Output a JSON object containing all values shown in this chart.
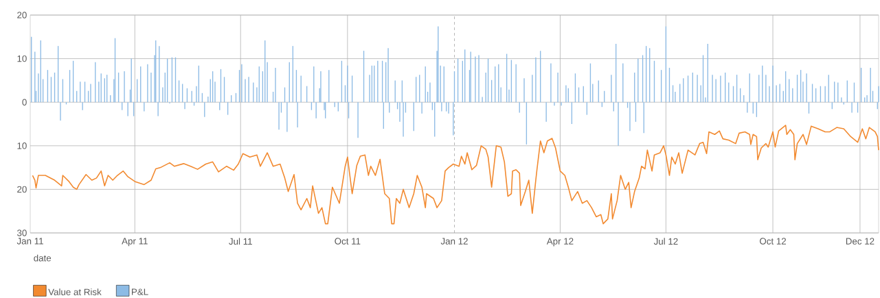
{
  "chart_data": {
    "type": "line",
    "xlabel": "date",
    "xlim": [
      "2011-01-01",
      "2012-12-31"
    ],
    "xticks": [
      {
        "value": "2011-01-01",
        "label": "Jan 11"
      },
      {
        "value": "2011-04-01",
        "label": "Apr 11"
      },
      {
        "value": "2011-07-01",
        "label": "Jul 11"
      },
      {
        "value": "2011-10-01",
        "label": "Oct 11"
      },
      {
        "value": "2012-01-01",
        "label": "Jan 12"
      },
      {
        "value": "2012-04-01",
        "label": "Apr 12"
      },
      {
        "value": "2012-07-01",
        "label": "Jul 12"
      },
      {
        "value": "2012-10-01",
        "label": "Oct 12"
      },
      {
        "value": "2012-12-15",
        "label": "Dec 12"
      }
    ],
    "ylim": [
      -30,
      20
    ],
    "yticks": [
      {
        "value": -30,
        "label": "30"
      },
      {
        "value": -20,
        "label": "20"
      },
      {
        "value": -10,
        "label": "10"
      },
      0,
      10,
      20
    ],
    "grid": true,
    "legend": "bottom left",
    "ref_lines": [
      {
        "axis": "x",
        "value": "2012-01-01",
        "line_style": "dashed",
        "color": "#a6a6a6"
      }
    ],
    "series": [
      {
        "name": "Value at Risk",
        "color": "#f28a30",
        "x": [
          "2011-01-03",
          "2011-01-05",
          "2011-01-06",
          "2011-01-08",
          "2011-01-14",
          "2011-01-22",
          "2011-01-28",
          "2011-01-29",
          "2011-02-03",
          "2011-02-07",
          "2011-02-10",
          "2011-02-12",
          "2011-02-18",
          "2011-02-23",
          "2011-02-27",
          "2011-03-03",
          "2011-03-06",
          "2011-03-09",
          "2011-03-13",
          "2011-03-17",
          "2011-03-22",
          "2011-03-26",
          "2011-04-01",
          "2011-04-09",
          "2011-04-15",
          "2011-04-19",
          "2011-04-23",
          "2011-05-01",
          "2011-05-05",
          "2011-05-13",
          "2011-05-19",
          "2011-05-25",
          "2011-06-01",
          "2011-06-07",
          "2011-06-12",
          "2011-06-19",
          "2011-06-25",
          "2011-06-29",
          "2011-07-03",
          "2011-07-09",
          "2011-07-15",
          "2011-07-18",
          "2011-07-24",
          "2011-07-29",
          "2011-08-04",
          "2011-08-08",
          "2011-08-11",
          "2011-08-16",
          "2011-08-19",
          "2011-08-22",
          "2011-08-27",
          "2011-08-30",
          "2011-09-01",
          "2011-09-06",
          "2011-09-09",
          "2011-09-12",
          "2011-09-14",
          "2011-09-18",
          "2011-09-24",
          "2011-09-29",
          "2011-10-01",
          "2011-10-05",
          "2011-10-09",
          "2011-10-12",
          "2011-10-16",
          "2011-10-19",
          "2011-10-21",
          "2011-10-25",
          "2011-10-29",
          "2011-11-02",
          "2011-11-06",
          "2011-11-08",
          "2011-11-10",
          "2011-11-12",
          "2011-11-15",
          "2011-11-18",
          "2011-11-23",
          "2011-11-27",
          "2011-11-30",
          "2011-12-04",
          "2011-12-07",
          "2011-12-08",
          "2011-12-14",
          "2011-12-17",
          "2011-12-21",
          "2011-12-24",
          "2011-12-27",
          "2011-12-31",
          "2012-01-05",
          "2012-01-07",
          "2012-01-10",
          "2012-01-12",
          "2012-01-16",
          "2012-01-20",
          "2012-01-24",
          "2012-01-28",
          "2012-01-30",
          "2012-02-02",
          "2012-02-06",
          "2012-02-10",
          "2012-02-13",
          "2012-02-16",
          "2012-02-19",
          "2012-02-20",
          "2012-02-23",
          "2012-02-26",
          "2012-02-27",
          "2012-03-02",
          "2012-03-05",
          "2012-03-08",
          "2012-03-11",
          "2012-03-12",
          "2012-03-15",
          "2012-03-18",
          "2012-03-21",
          "2012-03-25",
          "2012-03-28",
          "2012-04-01",
          "2012-04-05",
          "2012-04-08",
          "2012-04-11",
          "2012-04-16",
          "2012-04-20",
          "2012-04-24",
          "2012-04-28",
          "2012-05-02",
          "2012-05-06",
          "2012-05-08",
          "2012-05-12",
          "2012-05-15",
          "2012-05-16",
          "2012-05-20",
          "2012-05-23",
          "2012-05-27",
          "2012-05-30",
          "2012-06-01",
          "2012-06-04",
          "2012-06-08",
          "2012-06-10",
          "2012-06-13",
          "2012-06-15",
          "2012-06-19",
          "2012-06-21",
          "2012-06-26",
          "2012-06-29",
          "2012-07-01",
          "2012-07-04",
          "2012-07-06",
          "2012-07-09",
          "2012-07-12",
          "2012-07-15",
          "2012-07-20",
          "2012-07-26",
          "2012-07-30",
          "2012-08-02",
          "2012-08-05",
          "2012-08-07",
          "2012-08-12",
          "2012-08-16",
          "2012-08-19",
          "2012-08-24",
          "2012-08-30",
          "2012-09-02",
          "2012-09-07",
          "2012-09-11",
          "2012-09-12",
          "2012-09-14",
          "2012-09-17",
          "2012-09-18",
          "2012-09-21",
          "2012-09-25",
          "2012-09-27",
          "2012-10-01",
          "2012-10-03",
          "2012-10-06",
          "2012-10-12",
          "2012-10-13",
          "2012-10-16",
          "2012-10-19",
          "2012-10-20",
          "2012-10-22",
          "2012-10-27",
          "2012-10-30",
          "2012-11-03",
          "2012-11-09",
          "2012-11-15",
          "2012-11-19",
          "2012-11-25",
          "2012-12-01",
          "2012-12-07",
          "2012-12-13",
          "2012-12-17",
          "2012-12-20",
          "2012-12-23",
          "2012-12-28",
          "2012-12-30",
          "2012-12-31"
        ],
        "values": [
          -16.8,
          -17.9,
          -19.7,
          -16.8,
          -16.8,
          -17.9,
          -19.2,
          -16.8,
          -18.1,
          -19.5,
          -20,
          -18.9,
          -16.6,
          -17.9,
          -17.4,
          -15.8,
          -19.2,
          -16.8,
          -17.9,
          -16.8,
          -15.8,
          -17.1,
          -18.2,
          -18.9,
          -17.9,
          -15.3,
          -15.0,
          -13.9,
          -14.7,
          -14.1,
          -14.7,
          -15.4,
          -14.2,
          -13.7,
          -16,
          -14.7,
          -15.6,
          -14.2,
          -11.8,
          -12.6,
          -12.1,
          -14.7,
          -11.6,
          -14.7,
          -14.2,
          -17.4,
          -20.5,
          -16.6,
          -23.2,
          -24.7,
          -22.1,
          -24.2,
          -19.2,
          -25.5,
          -24.2,
          -27.9,
          -27.9,
          -19.5,
          -23.2,
          -14.7,
          -12.6,
          -21,
          -14.5,
          -12.4,
          -12.1,
          -16.8,
          -14.7,
          -16.8,
          -13.1,
          -21,
          -22.1,
          -27.9,
          -27.9,
          -22.1,
          -23.2,
          -20,
          -24.2,
          -21,
          -16.8,
          -19.5,
          -24.2,
          -21,
          -22.1,
          -24.2,
          -22.6,
          -15.8,
          -15.0,
          -14.2,
          -14.7,
          -12.4,
          -14.2,
          -11.6,
          -15.5,
          -14.5,
          -10,
          -10.8,
          -12.6,
          -19.5,
          -10,
          -10.3,
          -13.7,
          -21.6,
          -21,
          -15.8,
          -15.5,
          -16.3,
          -23.7,
          -20.5,
          -17.9,
          -25.5,
          -17.9,
          -15.5,
          -8.9,
          -11.6,
          -8.9,
          -8.3,
          -10.5,
          -15.8,
          -16.8,
          -19.5,
          -22.6,
          -20.5,
          -23.2,
          -22.6,
          -24.2,
          -26.3,
          -25.8,
          -27.9,
          -26.8,
          -21,
          -26.8,
          -22.6,
          -16.8,
          -20,
          -18.4,
          -24.2,
          -20.5,
          -17.4,
          -14.7,
          -15.3,
          -11,
          -15.8,
          -12.1,
          -11.6,
          -10,
          -12.1,
          -16.8,
          -12.6,
          -14.2,
          -11.6,
          -16.3,
          -11,
          -12.1,
          -9.5,
          -9.2,
          -11.8,
          -6.8,
          -7.4,
          -6.6,
          -8.4,
          -8.7,
          -9.5,
          -7.1,
          -6.8,
          -7.4,
          -9.7,
          -7.4,
          -7.9,
          -13.2,
          -10.5,
          -9.5,
          -10.3,
          -6.8,
          -10.3,
          -6.6,
          -5.3,
          -7.4,
          -6.3,
          -7.4,
          -13.2,
          -9.5,
          -7.4,
          -9.7,
          -5.5,
          -6.1,
          -6.8,
          -6.8,
          -5.8,
          -6.1,
          -7.9,
          -9.2,
          -6.1,
          -8.4,
          -5.8,
          -6.8,
          -7.9,
          -11
        ]
      },
      {
        "name": "P&L",
        "type": "bar",
        "color": "#8dbbe5",
        "x": [
          "2011-01-02",
          "2011-01-05",
          "2011-01-06",
          "2011-01-08",
          "2011-01-10",
          "2011-01-12",
          "2011-01-16",
          "2011-01-19",
          "2011-01-22",
          "2011-01-25",
          "2011-01-27",
          "2011-01-29",
          "2011-02-01",
          "2011-02-04",
          "2011-02-07",
          "2011-02-10",
          "2011-02-13",
          "2011-02-15",
          "2011-02-17",
          "2011-02-20",
          "2011-02-22",
          "2011-02-26",
          "2011-03-01",
          "2011-03-03",
          "2011-03-06",
          "2011-03-08",
          "2011-03-11",
          "2011-03-14",
          "2011-03-15",
          "2011-03-18",
          "2011-03-21",
          "2011-03-23",
          "2011-03-26",
          "2011-03-28",
          "2011-03-29",
          "2011-03-31",
          "2011-04-03",
          "2011-04-06",
          "2011-04-09",
          "2011-04-12",
          "2011-04-15",
          "2011-04-18",
          "2011-04-19",
          "2011-04-21",
          "2011-04-22",
          "2011-04-25",
          "2011-04-27",
          "2011-04-29",
          "2011-05-01",
          "2011-05-03",
          "2011-05-06",
          "2011-05-09",
          "2011-05-12",
          "2011-05-14",
          "2011-05-16",
          "2011-05-20",
          "2011-05-22",
          "2011-05-24",
          "2011-05-26",
          "2011-05-29",
          "2011-05-31",
          "2011-06-03",
          "2011-06-05",
          "2011-06-07",
          "2011-06-09",
          "2011-06-13",
          "2011-06-14",
          "2011-06-17",
          "2011-06-20",
          "2011-06-23",
          "2011-06-27",
          "2011-06-30",
          "2011-07-02",
          "2011-07-05",
          "2011-07-08",
          "2011-07-12",
          "2011-07-15",
          "2011-07-17",
          "2011-07-20",
          "2011-07-22",
          "2011-07-24",
          "2011-07-29",
          "2011-07-31",
          "2011-08-03",
          "2011-08-05",
          "2011-08-08",
          "2011-08-10",
          "2011-08-12",
          "2011-08-15",
          "2011-08-18",
          "2011-08-19",
          "2011-08-22",
          "2011-08-27",
          "2011-08-31",
          "2011-09-02",
          "2011-09-04",
          "2011-09-07",
          "2011-09-08",
          "2011-09-11",
          "2011-09-12",
          "2011-09-15",
          "2011-09-20",
          "2011-09-23",
          "2011-09-26",
          "2011-09-29",
          "2011-10-01",
          "2011-10-02",
          "2011-10-05",
          "2011-10-10",
          "2011-10-15",
          "2011-10-20",
          "2011-10-22",
          "2011-10-24",
          "2011-10-27",
          "2011-10-31",
          "2011-11-01",
          "2011-11-03",
          "2011-11-05",
          "2011-11-06",
          "2011-11-11",
          "2011-11-13",
          "2011-11-15",
          "2011-11-17",
          "2011-11-18",
          "2011-11-20",
          "2011-11-27",
          "2011-11-29",
          "2011-12-02",
          "2011-12-04",
          "2011-12-07",
          "2011-12-09",
          "2011-12-11",
          "2011-12-13",
          "2011-12-15",
          "2011-12-17",
          "2011-12-18",
          "2011-12-20",
          "2011-12-21",
          "2011-12-23",
          "2011-12-25",
          "2011-12-27",
          "2011-12-31",
          "2012-01-01",
          "2012-01-04",
          "2012-01-08",
          "2012-01-10",
          "2012-01-14",
          "2012-01-15",
          "2012-01-19",
          "2012-01-22",
          "2012-01-25",
          "2012-01-28",
          "2012-01-30",
          "2012-02-02",
          "2012-02-05",
          "2012-02-08",
          "2012-02-10",
          "2012-02-15",
          "2012-02-17",
          "2012-02-19",
          "2012-02-23",
          "2012-02-26",
          "2012-03-01",
          "2012-03-03",
          "2012-03-08",
          "2012-03-11",
          "2012-03-15",
          "2012-03-20",
          "2012-03-24",
          "2012-03-27",
          "2012-03-30",
          "2012-04-02",
          "2012-04-06",
          "2012-04-08",
          "2012-04-11",
          "2012-04-14",
          "2012-04-17",
          "2012-04-21",
          "2012-04-24",
          "2012-04-27",
          "2012-04-29",
          "2012-05-04",
          "2012-05-07",
          "2012-05-09",
          "2012-05-15",
          "2012-05-17",
          "2012-05-19",
          "2012-05-21",
          "2012-05-25",
          "2012-05-29",
          "2012-05-31",
          "2012-06-04",
          "2012-06-05",
          "2012-06-07",
          "2012-06-11",
          "2012-06-12",
          "2012-06-14",
          "2012-06-17",
          "2012-06-21",
          "2012-06-27",
          "2012-07-01",
          "2012-07-04",
          "2012-07-07",
          "2012-07-09",
          "2012-07-13",
          "2012-07-16",
          "2012-07-20",
          "2012-07-24",
          "2012-07-28",
          "2012-07-31",
          "2012-08-02",
          "2012-08-04",
          "2012-08-06",
          "2012-08-10",
          "2012-08-13",
          "2012-08-17",
          "2012-08-21",
          "2012-08-24",
          "2012-08-28",
          "2012-08-31",
          "2012-09-03",
          "2012-09-06",
          "2012-09-09",
          "2012-09-11",
          "2012-09-14",
          "2012-09-17",
          "2012-09-19",
          "2012-09-22",
          "2012-09-25",
          "2012-09-28",
          "2012-10-01",
          "2012-10-04",
          "2012-10-07",
          "2012-10-10",
          "2012-10-12",
          "2012-10-15",
          "2012-10-18",
          "2012-10-22",
          "2012-10-25",
          "2012-10-27",
          "2012-10-30",
          "2012-11-01",
          "2012-11-04",
          "2012-11-07",
          "2012-11-11",
          "2012-11-15",
          "2012-11-18",
          "2012-11-21",
          "2012-11-23",
          "2012-11-26",
          "2012-11-29",
          "2012-12-01",
          "2012-12-04",
          "2012-12-08",
          "2012-12-10",
          "2012-12-12",
          "2012-12-13",
          "2012-12-16",
          "2012-12-19",
          "2012-12-21",
          "2012-12-24",
          "2012-12-26",
          "2012-12-30",
          "2012-12-31"
        ],
        "values": [
          15,
          11.6,
          2.6,
          6.6,
          14.2,
          5.3,
          7.4,
          5.8,
          6.8,
          12.9,
          -4.2,
          5.3,
          -0.5,
          7.4,
          9.5,
          2.6,
          4.7,
          -1.8,
          4.7,
          2.6,
          4.2,
          9.2,
          4.7,
          6.6,
          5.5,
          6.3,
          1.6,
          5.3,
          14.7,
          6.8,
          -1.8,
          7.1,
          -3.2,
          2.9,
          10,
          -3.2,
          5.3,
          8.2,
          -2.1,
          8.7,
          6.8,
          10.8,
          14.2,
          -3.2,
          12.9,
          3.4,
          6.8,
          10,
          -0.3,
          10.3,
          10.3,
          5,
          4.2,
          -1.6,
          3.2,
          2.6,
          -0.8,
          3.7,
          8.4,
          2.1,
          -3.4,
          1.3,
          5.3,
          7.1,
          4.7,
          -1.8,
          7.6,
          5.8,
          -2.9,
          1.6,
          2.1,
          7.4,
          8.7,
          5.3,
          5.8,
          4.5,
          3.4,
          8.2,
          7.1,
          14.2,
          9.2,
          2.4,
          7.9,
          -6.3,
          -2.4,
          3.4,
          -6.8,
          9.2,
          12.9,
          7.4,
          -5.8,
          6.1,
          3.7,
          -1.8,
          8.2,
          -3.7,
          3.2,
          7.1,
          -1.8,
          -3.7,
          7.4,
          -1.1,
          -2.1,
          9.5,
          3.9,
          8.4,
          -3.7,
          6.1,
          -8.2,
          11.8,
          6.3,
          8.4,
          8.4,
          9.5,
          9.5,
          -6.1,
          9.2,
          12.4,
          -2.4,
          5,
          -1.6,
          -4.5,
          5,
          -7.9,
          -2.4,
          -6.6,
          5.8,
          6.3,
          -2.6,
          8.2,
          2.4,
          4.5,
          -1.8,
          -7.9,
          11.8,
          17.4,
          8.4,
          -2.1,
          8.2,
          -2.1,
          -2.6,
          -7.6,
          7.1,
          10,
          9.5,
          12.1,
          7.4,
          11.6,
          10.5,
          10.8,
          1.2,
          6.8,
          10,
          5.1,
          8.2,
          8.7,
          3.4,
          11.1,
          2.9,
          9.7,
          8.7,
          -2.4,
          5.5,
          -9.7,
          6.3,
          10.3,
          11.8,
          -4.5,
          8.9,
          -0.8,
          6.8,
          -0.8,
          3.9,
          3.2,
          -5,
          6.6,
          3.4,
          3.7,
          -2.9,
          8.9,
          4.2,
          5,
          -1.1,
          2.6,
          6.3,
          -2.1,
          13.4,
          -10,
          8.9,
          -1.3,
          -6.6,
          6.8,
          -4.5,
          10,
          10.8,
          -7.1,
          12.9,
          12.4,
          9.5,
          7.4,
          17.4,
          7.9,
          3.9,
          2.4,
          4.2,
          5.5,
          6.1,
          6.8,
          6.3,
          3.9,
          10.8,
          1.1,
          13.4,
          6.3,
          5.3,
          6.1,
          6.8,
          4.5,
          3.7,
          6.3,
          3.2,
          1.6,
          -2.4,
          6.6,
          -2.6,
          -3.4,
          6.3,
          8.4,
          6.3,
          3.7,
          8.4,
          3.9,
          4.2,
          2.6,
          7.1,
          5.3,
          3.2,
          6.3,
          7.4,
          4.7,
          6.6,
          -2.6,
          4.2,
          3.2,
          3.7,
          3.7,
          6.3,
          -1.6,
          4.7,
          4.5,
          1.1,
          -0.5,
          5,
          -2.4,
          4.5,
          0,
          -2.4,
          7.9,
          1.1,
          1.6,
          7.9,
          2.6,
          -1.6,
          3.7
        ]
      }
    ]
  }
}
